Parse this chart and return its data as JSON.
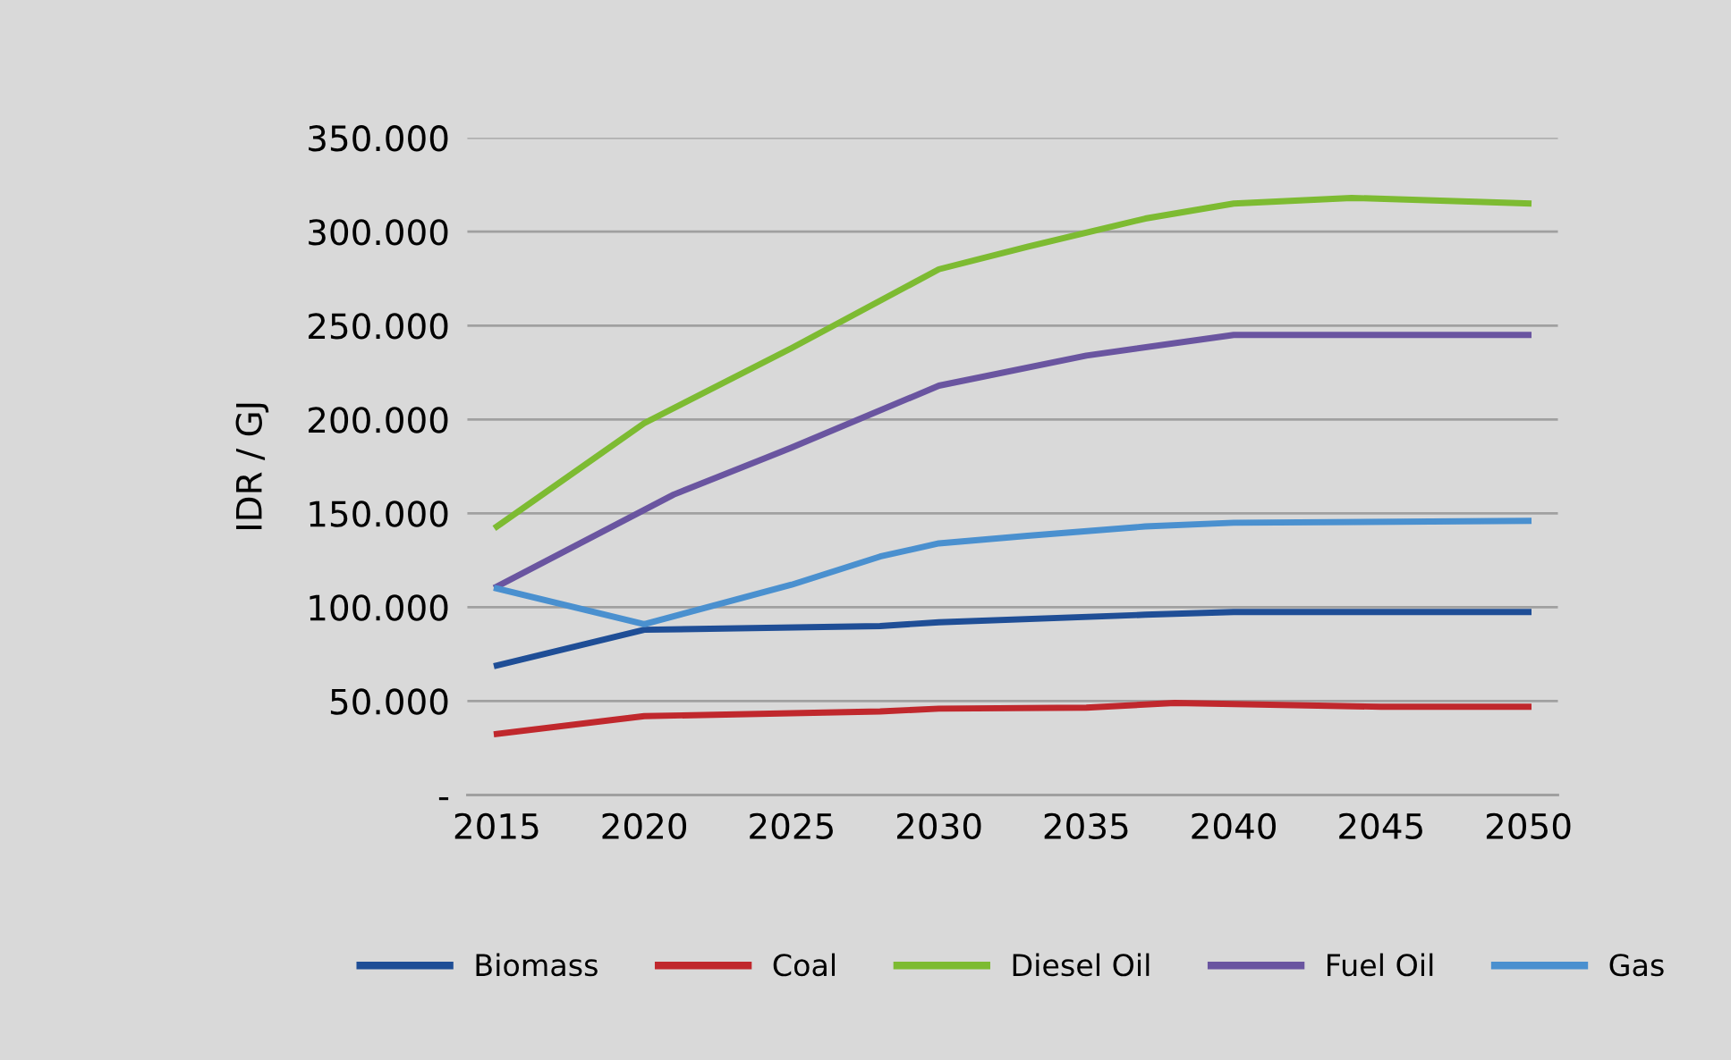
{
  "chart_data": {
    "type": "line",
    "ylabel": "IDR / GJ",
    "xlim": [
      2014,
      2051
    ],
    "xticks": [
      2015,
      2020,
      2025,
      2030,
      2035,
      2040,
      2045,
      2050
    ],
    "ylim": [
      0,
      350000
    ],
    "yticks": [
      {
        "value": 0,
        "label": "-"
      },
      {
        "value": 50000,
        "label": "50.000"
      },
      {
        "value": 100000,
        "label": "100.000"
      },
      {
        "value": 150000,
        "label": "150.000"
      },
      {
        "value": 200000,
        "label": "200.000"
      },
      {
        "value": 250000,
        "label": "250.000"
      },
      {
        "value": 300000,
        "label": "300.000"
      },
      {
        "value": 350000,
        "label": "350.000"
      }
    ],
    "grid": "y",
    "legend": "bottom",
    "marker": "none",
    "line_style": "solid",
    "series": [
      {
        "name": "Biomass",
        "color": "#1f4e96",
        "x": [
          2015,
          2020,
          2028,
          2030,
          2037,
          2040,
          2050
        ],
        "values": [
          69000,
          88000,
          90000,
          92000,
          96000,
          97500,
          97500
        ]
      },
      {
        "name": "Coal",
        "color": "#c0282d",
        "x": [
          2015,
          2020,
          2028,
          2030,
          2035,
          2038,
          2045,
          2050
        ],
        "values": [
          32500,
          42000,
          44500,
          46000,
          46500,
          49000,
          47000,
          47000
        ]
      },
      {
        "name": "Diesel Oil",
        "color": "#7dbb32",
        "x": [
          2015,
          2020,
          2025,
          2030,
          2033,
          2037,
          2040,
          2044,
          2050
        ],
        "values": [
          143000,
          198000,
          238000,
          280000,
          292000,
          307000,
          315000,
          318000,
          315000
        ]
      },
      {
        "name": "Fuel Oil",
        "color": "#6a55a0",
        "x": [
          2015,
          2021,
          2025,
          2030,
          2035,
          2040,
          2050
        ],
        "values": [
          111000,
          160000,
          185000,
          218000,
          234000,
          245000,
          245000
        ]
      },
      {
        "name": "Gas",
        "color": "#4a90cf",
        "x": [
          2015,
          2020,
          2025,
          2028,
          2030,
          2033,
          2037,
          2040,
          2050
        ],
        "values": [
          110000,
          91000,
          112000,
          127000,
          134000,
          138000,
          143000,
          145000,
          146000
        ]
      }
    ]
  }
}
